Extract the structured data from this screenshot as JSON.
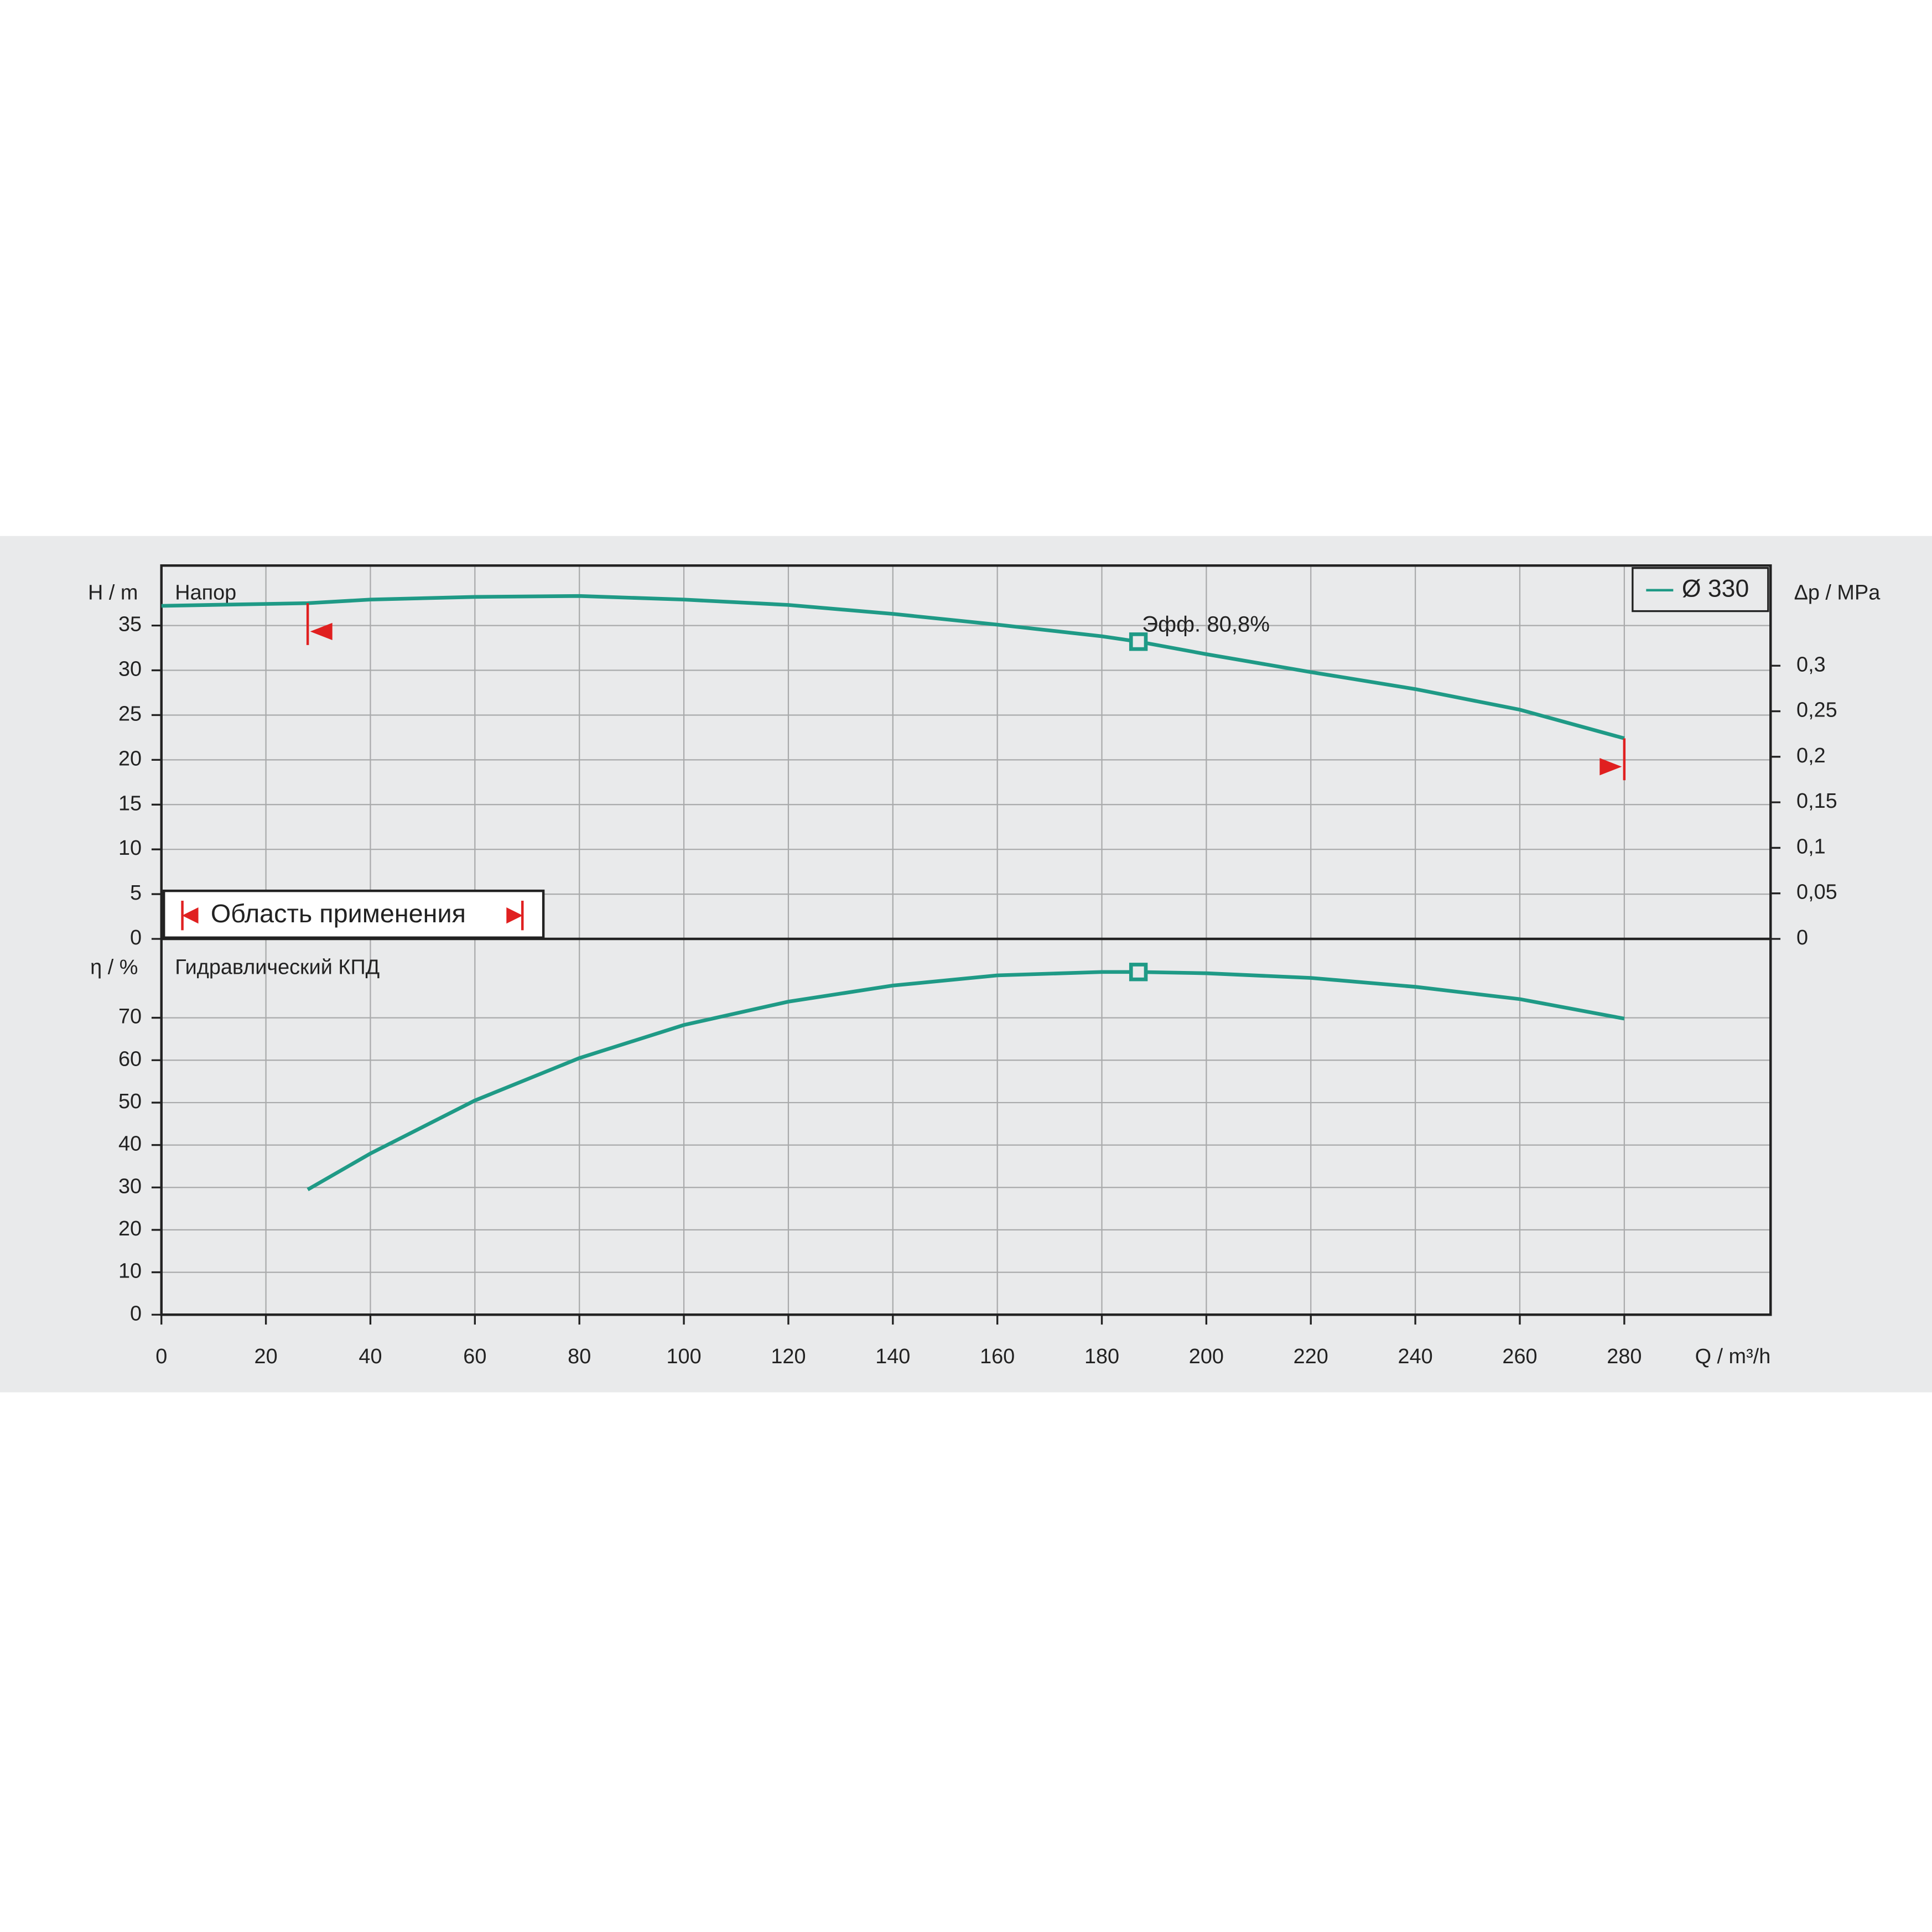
{
  "chart_data": [
    {
      "type": "line",
      "title": "Напор",
      "y_label": "H / m",
      "y2_label": "Δp / MPa",
      "xlim": [
        0,
        308
      ],
      "ylim": [
        0,
        41.7
      ],
      "yticks": [
        0,
        5,
        10,
        15,
        20,
        25,
        30,
        35
      ],
      "y2lim": [
        0,
        0.41
      ],
      "y2ticks": [
        0,
        {
          "value": 0.05,
          "label": "0,05"
        },
        {
          "value": 0.1,
          "label": "0,1"
        },
        {
          "value": 0.15,
          "label": "0,15"
        },
        {
          "value": 0.2,
          "label": "0,2"
        },
        {
          "value": 0.25,
          "label": "0,25"
        },
        {
          "value": 0.3,
          "label": "0,3"
        }
      ],
      "grid": true,
      "series": [
        {
          "name": "Ø 330",
          "color": "#1f9a86",
          "x": [
            0,
            28,
            40,
            60,
            80,
            100,
            120,
            140,
            160,
            180,
            187,
            200,
            220,
            240,
            260,
            280
          ],
          "values": [
            37.2,
            37.5,
            37.9,
            38.2,
            38.3,
            37.9,
            37.3,
            36.3,
            35.1,
            33.8,
            33.2,
            31.8,
            29.8,
            27.9,
            25.6,
            22.4
          ]
        }
      ],
      "duty_point": {
        "x": 187,
        "value": 33.2,
        "label": "Эфф.  80,8%"
      },
      "range": {
        "label": "Область применения",
        "xmin": 28,
        "xmax": 280,
        "color": "#e02020"
      }
    },
    {
      "type": "line",
      "title": "Гидравлический КПД",
      "y_label": "η / %",
      "x_label": "Q / m³/h",
      "xlim": [
        0,
        308
      ],
      "ylim": [
        0,
        88.6
      ],
      "xticks": [
        0,
        20,
        40,
        60,
        80,
        100,
        120,
        140,
        160,
        180,
        200,
        220,
        240,
        260,
        280
      ],
      "yticks": [
        0,
        10,
        20,
        30,
        40,
        50,
        60,
        70
      ],
      "grid": true,
      "series": [
        {
          "name": "Ø 330",
          "color": "#1f9a86",
          "x": [
            28,
            40,
            60,
            80,
            100,
            120,
            140,
            160,
            180,
            187,
            200,
            220,
            240,
            260,
            280
          ],
          "values": [
            29.5,
            38,
            50.5,
            60.5,
            68.3,
            73.8,
            77.6,
            80,
            80.8,
            80.8,
            80.5,
            79.4,
            77.3,
            74.4,
            69.8
          ]
        }
      ],
      "duty_point": {
        "x": 187,
        "value": 80.8
      }
    }
  ]
}
